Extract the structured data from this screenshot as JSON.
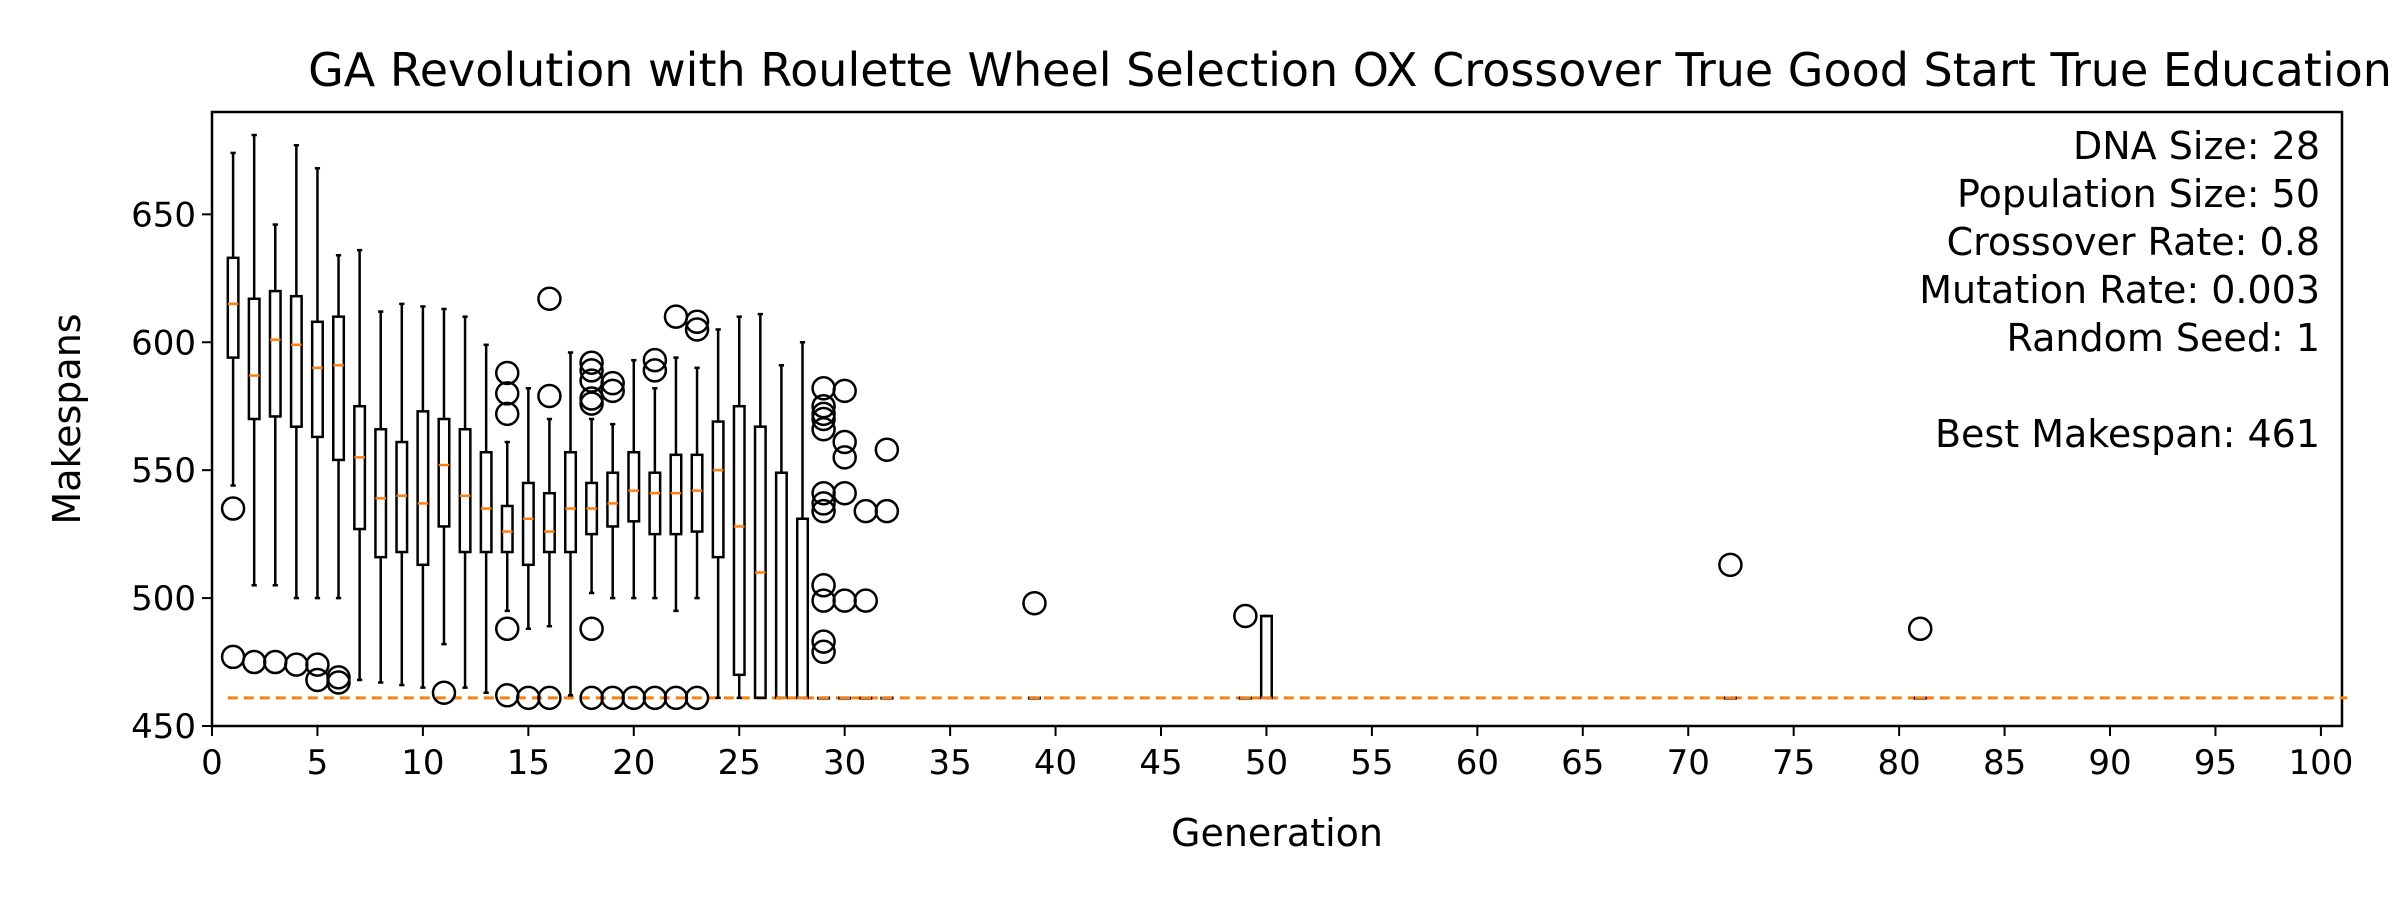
{
  "chart_data": {
    "type": "boxplot",
    "title": "GA Revolution with Roulette Wheel Selection OX Crossover True Good Start True Education",
    "xlabel": "Generation",
    "ylabel": "Makespans",
    "xlim": [
      0,
      101
    ],
    "ylim": [
      450,
      690
    ],
    "x_ticks": [
      0,
      5,
      10,
      15,
      20,
      25,
      30,
      35,
      40,
      45,
      50,
      55,
      60,
      65,
      70,
      75,
      80,
      85,
      90,
      95,
      100
    ],
    "y_ticks": [
      450,
      500,
      550,
      600,
      650
    ],
    "grid": false,
    "median_color": "#ff7f0e",
    "info_lines": [
      "DNA Size: 28",
      "Population Size: 50",
      "Crossover Rate: 0.8",
      "Mutation Rate: 0.003",
      "Random Seed: 1",
      "",
      "Best Makespan: 461"
    ],
    "boxes": [
      {
        "x": 1,
        "whislo": 544,
        "q1": 594,
        "med": 615,
        "q3": 633,
        "whishi": 674,
        "fliers": [
          535,
          477
        ]
      },
      {
        "x": 2,
        "whislo": 505,
        "q1": 570,
        "med": 587,
        "q3": 617,
        "whishi": 681,
        "fliers": [
          475
        ]
      },
      {
        "x": 3,
        "whislo": 505,
        "q1": 571,
        "med": 601,
        "q3": 620,
        "whishi": 646,
        "fliers": [
          475
        ]
      },
      {
        "x": 4,
        "whislo": 500,
        "q1": 567,
        "med": 599,
        "q3": 618,
        "whishi": 677,
        "fliers": [
          474
        ]
      },
      {
        "x": 5,
        "whislo": 500,
        "q1": 563,
        "med": 590,
        "q3": 608,
        "whishi": 668,
        "fliers": [
          474,
          468
        ]
      },
      {
        "x": 6,
        "whislo": 500,
        "q1": 554,
        "med": 591,
        "q3": 610,
        "whishi": 634,
        "fliers": [
          469,
          467
        ]
      },
      {
        "x": 7,
        "whislo": 468,
        "q1": 527,
        "med": 555,
        "q3": 575,
        "whishi": 636,
        "fliers": []
      },
      {
        "x": 8,
        "whislo": 467,
        "q1": 516,
        "med": 539,
        "q3": 566,
        "whishi": 612,
        "fliers": []
      },
      {
        "x": 9,
        "whislo": 466,
        "q1": 518,
        "med": 540,
        "q3": 561,
        "whishi": 615,
        "fliers": []
      },
      {
        "x": 10,
        "whislo": 465,
        "q1": 513,
        "med": 537,
        "q3": 573,
        "whishi": 614,
        "fliers": []
      },
      {
        "x": 11,
        "whislo": 482,
        "q1": 528,
        "med": 552,
        "q3": 570,
        "whishi": 613,
        "fliers": [
          463
        ]
      },
      {
        "x": 12,
        "whislo": 465,
        "q1": 518,
        "med": 540,
        "q3": 566,
        "whishi": 610,
        "fliers": []
      },
      {
        "x": 13,
        "whislo": 463,
        "q1": 518,
        "med": 535,
        "q3": 557,
        "whishi": 599,
        "fliers": []
      },
      {
        "x": 14,
        "whislo": 495,
        "q1": 518,
        "med": 526,
        "q3": 536,
        "whishi": 561,
        "fliers": [
          588,
          580,
          572,
          488,
          462
        ]
      },
      {
        "x": 15,
        "whislo": 488,
        "q1": 513,
        "med": 531,
        "q3": 545,
        "whishi": 582,
        "fliers": [
          461
        ]
      },
      {
        "x": 16,
        "whislo": 489,
        "q1": 518,
        "med": 526,
        "q3": 541,
        "whishi": 570,
        "fliers": [
          617,
          579,
          461
        ]
      },
      {
        "x": 17,
        "whislo": 462,
        "q1": 518,
        "med": 535,
        "q3": 557,
        "whishi": 596,
        "fliers": []
      },
      {
        "x": 18,
        "whislo": 502,
        "q1": 525,
        "med": 535,
        "q3": 545,
        "whishi": 570,
        "fliers": [
          592,
          589,
          585,
          578,
          576,
          488,
          461
        ]
      },
      {
        "x": 19,
        "whislo": 500,
        "q1": 528,
        "med": 537,
        "q3": 549,
        "whishi": 568,
        "fliers": [
          584,
          581,
          461
        ]
      },
      {
        "x": 20,
        "whislo": 500,
        "q1": 530,
        "med": 542,
        "q3": 557,
        "whishi": 593,
        "fliers": [
          461
        ]
      },
      {
        "x": 21,
        "whislo": 500,
        "q1": 525,
        "med": 541,
        "q3": 549,
        "whishi": 582,
        "fliers": [
          593,
          589,
          461
        ]
      },
      {
        "x": 22,
        "whislo": 495,
        "q1": 525,
        "med": 541,
        "q3": 556,
        "whishi": 594,
        "fliers": [
          610,
          461
        ]
      },
      {
        "x": 23,
        "whislo": 500,
        "q1": 526,
        "med": 542,
        "q3": 556,
        "whishi": 590,
        "fliers": [
          608,
          605,
          461
        ]
      },
      {
        "x": 24,
        "whislo": 461,
        "q1": 516,
        "med": 550,
        "q3": 569,
        "whishi": 605,
        "fliers": []
      },
      {
        "x": 25,
        "whislo": 461,
        "q1": 470,
        "med": 528,
        "q3": 575,
        "whishi": 610,
        "fliers": []
      },
      {
        "x": 26,
        "whislo": 461,
        "q1": 461,
        "med": 510,
        "q3": 567,
        "whishi": 611,
        "fliers": []
      },
      {
        "x": 27,
        "whislo": 461,
        "q1": 461,
        "med": 461,
        "q3": 549,
        "whishi": 591,
        "fliers": []
      },
      {
        "x": 28,
        "whislo": 461,
        "q1": 461,
        "med": 461,
        "q3": 531,
        "whishi": 600,
        "fliers": []
      },
      {
        "x": 29,
        "whislo": 461,
        "q1": 461,
        "med": 461,
        "q3": 461,
        "whishi": 461,
        "fliers": [
          582,
          575,
          572,
          570,
          566,
          541,
          537,
          534,
          505,
          499,
          483,
          479
        ]
      },
      {
        "x": 30,
        "whislo": 461,
        "q1": 461,
        "med": 461,
        "q3": 461,
        "whishi": 461,
        "fliers": [
          581,
          561,
          555,
          541,
          499
        ]
      },
      {
        "x": 31,
        "whislo": 461,
        "q1": 461,
        "med": 461,
        "q3": 461,
        "whishi": 461,
        "fliers": [
          534,
          499
        ]
      },
      {
        "x": 32,
        "whislo": 461,
        "q1": 461,
        "med": 461,
        "q3": 461,
        "whishi": 461,
        "fliers": [
          558,
          534
        ]
      },
      {
        "x": 39,
        "whislo": 461,
        "q1": 461,
        "med": 461,
        "q3": 461,
        "whishi": 461,
        "fliers": [
          498
        ]
      },
      {
        "x": 49,
        "whislo": 461,
        "q1": 461,
        "med": 461,
        "q3": 461,
        "whishi": 461,
        "fliers": [
          493
        ]
      },
      {
        "x": 50,
        "whislo": 461,
        "q1": 461,
        "med": 461,
        "q3": 493,
        "whishi": 493,
        "fliers": []
      },
      {
        "x": 72,
        "whislo": 461,
        "q1": 461,
        "med": 461,
        "q3": 461,
        "whishi": 461,
        "fliers": [
          513
        ]
      },
      {
        "x": 81,
        "whislo": 461,
        "q1": 461,
        "med": 461,
        "q3": 461,
        "whishi": 461,
        "fliers": [
          488
        ]
      }
    ],
    "flat_generations": {
      "from": 1,
      "to": 101,
      "value": 461
    }
  }
}
